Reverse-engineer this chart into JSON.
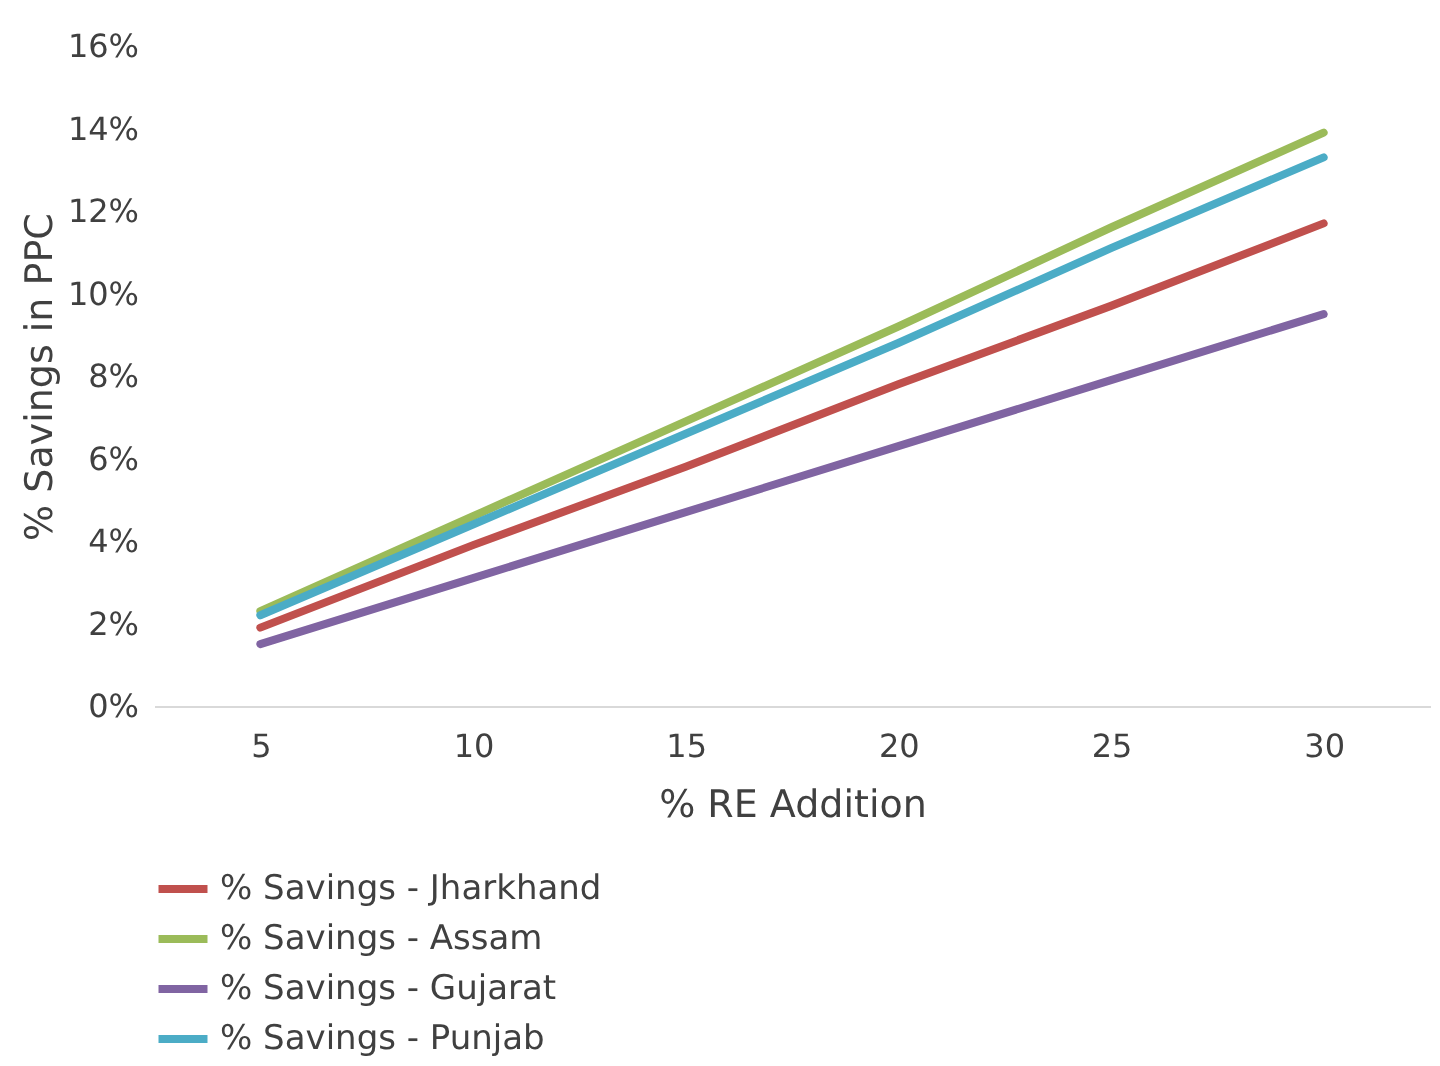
{
  "chart_data": {
    "type": "line",
    "xlabel": "% RE Addition",
    "ylabel": "% Savings in PPC",
    "categories": [
      "5",
      "10",
      "15",
      "20",
      "25",
      "30"
    ],
    "ylim": [
      0,
      16
    ],
    "yticks": [
      {
        "value": 0,
        "label": "0%"
      },
      {
        "value": 2,
        "label": "2%"
      },
      {
        "value": 4,
        "label": "4%"
      },
      {
        "value": 6,
        "label": "6%"
      },
      {
        "value": 8,
        "label": "8%"
      },
      {
        "value": 10,
        "label": "10%"
      },
      {
        "value": 12,
        "label": "12%"
      },
      {
        "value": 14,
        "label": "14%"
      },
      {
        "value": 16,
        "label": "16%"
      }
    ],
    "grid": false,
    "legend": "bottom",
    "marker": "none",
    "line_style": "solid",
    "series": [
      {
        "name": "% Savings - Jharkhand",
        "color": "#c0504d",
        "values": [
          1.9,
          3.9,
          5.8,
          7.8,
          9.7,
          11.7
        ]
      },
      {
        "name": "% Savings - Assam",
        "color": "#9bbb59",
        "values": [
          2.3,
          4.6,
          6.9,
          9.2,
          11.6,
          13.9
        ]
      },
      {
        "name": "% Savings - Gujarat",
        "color": "#8064a2",
        "values": [
          1.5,
          3.1,
          4.7,
          6.3,
          7.9,
          9.5
        ]
      },
      {
        "name": "% Savings - Punjab",
        "color": "#4bacc6",
        "values": [
          2.2,
          4.4,
          6.6,
          8.8,
          11.1,
          13.3
        ]
      }
    ]
  }
}
